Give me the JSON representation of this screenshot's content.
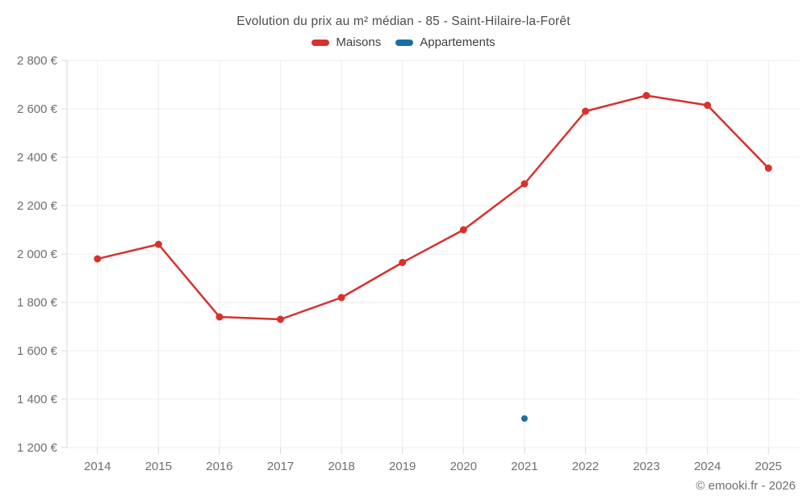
{
  "title": "Evolution du prix au m² médian - 85 - Saint-Hilaire-la-Forêt",
  "watermark": "© emooki.fr - 2026",
  "colors": {
    "maisons": "#d7312e",
    "appartements": "#1c6ea6",
    "gridline": "#ececec",
    "axis_line": "#d8d8d8",
    "tick": "#d9d9d9",
    "axis_text": "#6e6e6e"
  },
  "legend": [
    {
      "label": "Maisons",
      "color": "#d7312e"
    },
    {
      "label": "Appartements",
      "color": "#1c6ea6"
    }
  ],
  "chart_data": {
    "type": "line",
    "title": "Evolution du prix au m² médian - 85 - Saint-Hilaire-la-Forêt",
    "categories": [
      "2014",
      "2015",
      "2016",
      "2017",
      "2018",
      "2019",
      "2020",
      "2021",
      "2022",
      "2023",
      "2024",
      "2025"
    ],
    "series": [
      {
        "name": "Maisons",
        "color": "#d7312e",
        "values": [
          1980,
          2040,
          1740,
          1730,
          1820,
          1965,
          2100,
          2290,
          2590,
          2655,
          2615,
          2355
        ]
      },
      {
        "name": "Appartements",
        "color": "#1c6ea6",
        "values": [
          null,
          null,
          null,
          null,
          null,
          null,
          null,
          1320,
          null,
          null,
          null,
          null
        ]
      }
    ],
    "ylim": [
      1200,
      2800
    ],
    "ytick_step": 200,
    "ytick_suffix": " €",
    "grid": true,
    "legend_position": "top",
    "xlabel": "",
    "ylabel": ""
  }
}
